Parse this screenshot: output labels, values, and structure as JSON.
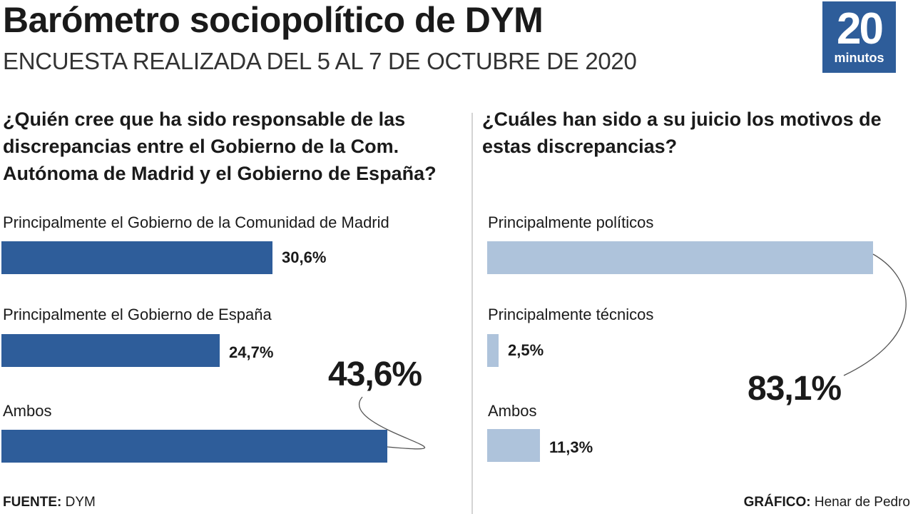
{
  "header": {
    "title": "Barómetro sociopolítico de DYM",
    "subtitle": "ENCUESTA REALIZADA DEL 5 AL 7 DE OCTUBRE DE 2020",
    "logo_number": "20",
    "logo_word": "minutos",
    "logo_color": "#2e5d9a"
  },
  "chart_data": [
    {
      "type": "bar",
      "orientation": "horizontal",
      "title": "¿Quién cree que ha sido responsable de las discrepancias entre el Gobierno de la Com. Autónoma de Madrid y el Gobierno de España?",
      "categories": [
        "Principalmente el Gobierno de la Comunidad de Madrid",
        "Principalmente el Gobierno de España",
        "Ambos"
      ],
      "values": [
        30.6,
        24.7,
        43.6
      ],
      "value_labels": [
        "30,6%",
        "24,7%",
        "43,6%"
      ],
      "unit": "%",
      "color": "#2e5d9a",
      "xlim": [
        0,
        100
      ],
      "grid": false
    },
    {
      "type": "bar",
      "orientation": "horizontal",
      "title": "¿Cuáles han sido a su juicio los motivos de estas discrepancias?",
      "categories": [
        "Principalmente políticos",
        "Principalmente técnicos",
        "Ambos"
      ],
      "values": [
        83.1,
        2.5,
        11.3
      ],
      "value_labels": [
        "83,1%",
        "2,5%",
        "11,3%"
      ],
      "unit": "%",
      "color": "#aec3db",
      "xlim": [
        0,
        100
      ],
      "grid": false
    }
  ],
  "footer": {
    "source_label": "FUENTE:",
    "source_value": "DYM",
    "credit_label": "GRÁFICO:",
    "credit_value": "Henar de Pedro"
  }
}
